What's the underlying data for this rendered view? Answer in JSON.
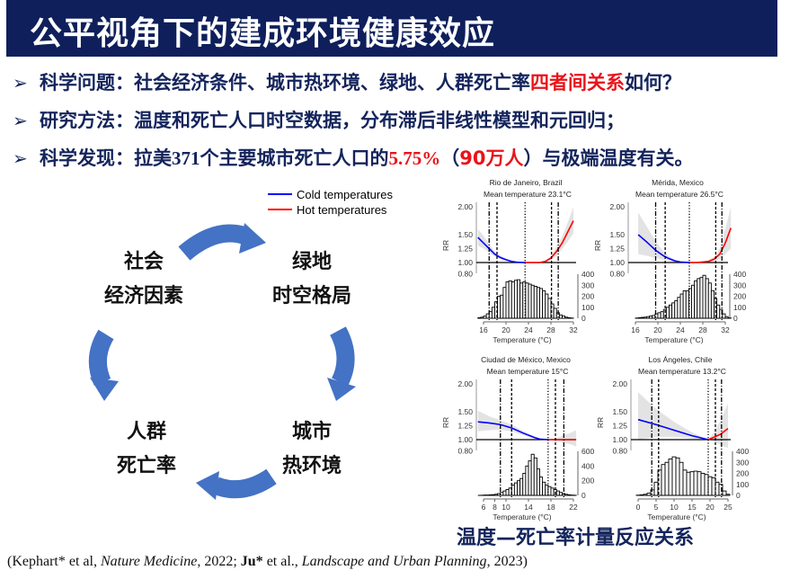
{
  "header": {
    "title": "公平视角下的建成环境健康效应",
    "bg_color": "#0e1f5b"
  },
  "bullets": [
    {
      "marker": "➢",
      "label": "科学问题：",
      "text": "社会经济条件、城市热环境、绿地、人群死亡率",
      "highlight": "四者间关系",
      "tail": "如何？"
    },
    {
      "marker": "➢",
      "label": "研究方法：",
      "text": "温度和死亡人口时空数据，分布滞后非线性模型和元回归；"
    },
    {
      "marker": "➢",
      "label": "科学发现：",
      "pre": "拉美",
      "num": "371",
      "mid": "个主要城市死亡人口的",
      "pct": "5.75%",
      "paren_open": "（",
      "count": "90万人",
      "paren_close": "）",
      "tail": "与极端温度有关。"
    }
  ],
  "diagram": {
    "arrow_color": "#4472c4",
    "nodes": [
      {
        "line1": "社会",
        "line2": "经济因素"
      },
      {
        "line1": "绿地",
        "line2": "时空格局"
      },
      {
        "line1": "城市",
        "line2": "热环境"
      },
      {
        "line1": "人群",
        "line2": "死亡率"
      }
    ]
  },
  "legend": {
    "items": [
      {
        "label": "Cold temperatures",
        "color": "#0000ff"
      },
      {
        "label": "Hot temperatures",
        "color": "#ff0000"
      }
    ]
  },
  "chart_data": [
    {
      "type": "line+histogram",
      "title": "Rio de Janeiro, Brazil",
      "subtitle": "Mean temperature 23.1°C",
      "xlabel": "Temperature (°C)",
      "ylabel": "RR",
      "xticks": [
        16,
        20,
        24,
        28,
        32
      ],
      "rr_ticks": [
        "2.00",
        "1.50",
        "1.25",
        "1.00",
        "0.80"
      ],
      "hist_ticks": [
        0,
        100,
        200,
        300,
        400
      ],
      "hist_max": 400,
      "mmt": 23.4,
      "vlines": [
        {
          "t": 17,
          "style": "dotdash"
        },
        {
          "t": 18.4,
          "style": "dashed"
        },
        {
          "t": 23.4,
          "style": "dotted"
        },
        {
          "t": 28.1,
          "style": "dashed"
        },
        {
          "t": 29.3,
          "style": "dotdash"
        }
      ],
      "curve": [
        [
          15,
          1.45,
          1.3,
          1.6
        ],
        [
          16,
          1.35,
          1.25,
          1.48
        ],
        [
          17,
          1.25,
          1.18,
          1.33
        ],
        [
          18,
          1.15,
          1.11,
          1.2
        ],
        [
          19,
          1.09,
          1.06,
          1.12
        ],
        [
          20,
          1.05,
          1.03,
          1.07
        ],
        [
          21,
          1.02,
          1.01,
          1.03
        ],
        [
          22,
          1.005,
          1.0,
          1.01
        ],
        [
          23.4,
          1,
          1,
          1
        ],
        [
          25,
          1,
          1,
          1.01
        ],
        [
          26,
          1,
          0.99,
          1.01
        ],
        [
          27,
          1.02,
          1.0,
          1.04
        ],
        [
          28,
          1.08,
          1.04,
          1.12
        ],
        [
          29,
          1.2,
          1.12,
          1.28
        ],
        [
          30,
          1.35,
          1.24,
          1.47
        ],
        [
          31,
          1.55,
          1.38,
          1.72
        ],
        [
          32,
          1.75,
          1.52,
          2.0
        ]
      ],
      "hist_start": 15,
      "hist_bin": 0.5,
      "hist": [
        5,
        10,
        20,
        40,
        60,
        100,
        150,
        200,
        210,
        280,
        330,
        340,
        330,
        345,
        350,
        320,
        330,
        320,
        310,
        300,
        290,
        280,
        270,
        250,
        220,
        180,
        130,
        90,
        50,
        30,
        20,
        10,
        5,
        2
      ]
    },
    {
      "type": "line+histogram",
      "title": "Mérida, Mexico",
      "subtitle": "Mean temperature 26.5°C",
      "xlabel": "Temperature (°C)",
      "ylabel": "RR",
      "xticks": [
        16,
        20,
        24,
        28,
        32
      ],
      "rr_ticks": [
        "2.00",
        "1.50",
        "1.25",
        "1.00",
        "0.80"
      ],
      "hist_ticks": [
        0,
        100,
        200,
        300,
        400
      ],
      "hist_max": 400,
      "mmt": 25.6,
      "vlines": [
        {
          "t": 19.6,
          "style": "dotdash"
        },
        {
          "t": 21.3,
          "style": "dashed"
        },
        {
          "t": 25.6,
          "style": "dotted"
        },
        {
          "t": 30.3,
          "style": "dashed"
        },
        {
          "t": 31.4,
          "style": "dotdash"
        }
      ],
      "curve": [
        [
          16.5,
          1.5,
          1.15,
          1.9
        ],
        [
          18,
          1.37,
          1.12,
          1.65
        ],
        [
          19.6,
          1.22,
          1.08,
          1.38
        ],
        [
          21,
          1.12,
          1.05,
          1.2
        ],
        [
          22,
          1.07,
          1.03,
          1.11
        ],
        [
          23,
          1.03,
          1.01,
          1.05
        ],
        [
          24,
          1.01,
          1.0,
          1.02
        ],
        [
          25.6,
          1,
          1,
          1
        ],
        [
          27,
          1,
          0.99,
          1.01
        ],
        [
          28,
          1.01,
          1.0,
          1.02
        ],
        [
          29,
          1.02,
          1.0,
          1.04
        ],
        [
          30,
          1.06,
          1.02,
          1.1
        ],
        [
          31,
          1.15,
          1.06,
          1.25
        ],
        [
          32,
          1.35,
          1.15,
          1.6
        ],
        [
          33,
          1.62,
          1.25,
          2.0
        ]
      ],
      "hist_start": 16,
      "hist_bin": 0.5,
      "hist": [
        2,
        5,
        8,
        10,
        15,
        20,
        25,
        40,
        50,
        60,
        80,
        100,
        120,
        140,
        160,
        190,
        220,
        250,
        250,
        270,
        300,
        340,
        360,
        370,
        390,
        360,
        320,
        250,
        180,
        120,
        80,
        40,
        15,
        5
      ]
    },
    {
      "type": "line+histogram",
      "title": "Ciudad de México, Mexico",
      "subtitle": "Mean temperature 15°C",
      "xlabel": "Temperature (°C)",
      "ylabel": "RR",
      "xticks": [
        6,
        8,
        10,
        14,
        18,
        22
      ],
      "rr_ticks": [
        "2.00",
        "1.50",
        "1.25",
        "1.00",
        "0.80"
      ],
      "hist_ticks": [
        0,
        200,
        400,
        600
      ],
      "hist_max": 600,
      "mmt": 17.5,
      "vlines": [
        {
          "t": 9,
          "style": "dotdash"
        },
        {
          "t": 11,
          "style": "dashed"
        },
        {
          "t": 17.5,
          "style": "dotted"
        },
        {
          "t": 18.8,
          "style": "dashed"
        },
        {
          "t": 20.3,
          "style": "dotdash"
        }
      ],
      "curve": [
        [
          5,
          1.32,
          1.15,
          1.52
        ],
        [
          7,
          1.3,
          1.17,
          1.42
        ],
        [
          9,
          1.27,
          1.18,
          1.35
        ],
        [
          11,
          1.21,
          1.15,
          1.27
        ],
        [
          13,
          1.12,
          1.08,
          1.16
        ],
        [
          15,
          1.04,
          1.02,
          1.06
        ],
        [
          16,
          1.01,
          1.0,
          1.02
        ],
        [
          17.5,
          1,
          1,
          1
        ],
        [
          19,
          1,
          0.98,
          1.03
        ],
        [
          21,
          1,
          0.93,
          1.1
        ],
        [
          22.5,
          1,
          0.88,
          1.17
        ]
      ],
      "hist_start": 5,
      "hist_bin": 0.5,
      "hist": [
        0,
        2,
        5,
        5,
        8,
        10,
        15,
        25,
        40,
        60,
        80,
        100,
        140,
        170,
        200,
        230,
        300,
        400,
        470,
        560,
        510,
        360,
        250,
        180,
        140,
        120,
        100,
        80,
        60,
        40,
        25,
        15,
        8,
        4,
        2
      ]
    },
    {
      "type": "line+histogram",
      "title": "Los Ángeles, Chile",
      "subtitle": "Mean temperature 13.2°C",
      "xlabel": "Temperature (°C)",
      "ylabel": "RR",
      "xticks": [
        0,
        5,
        10,
        15,
        20,
        25
      ],
      "rr_ticks": [
        "2.00",
        "1.50",
        "1.25",
        "1.00",
        "0.80"
      ],
      "hist_ticks": [
        0,
        100,
        200,
        300,
        400
      ],
      "hist_max": 400,
      "mmt": 19.5,
      "vlines": [
        {
          "t": 3.8,
          "style": "dotdash"
        },
        {
          "t": 5.7,
          "style": "dashed"
        },
        {
          "t": 19.5,
          "style": "dotted"
        },
        {
          "t": 21.5,
          "style": "dashed"
        },
        {
          "t": 23.2,
          "style": "dotdash"
        }
      ],
      "curve": [
        [
          0,
          1.36,
          1.0,
          1.85
        ],
        [
          5,
          1.27,
          1.05,
          1.55
        ],
        [
          10,
          1.17,
          1.05,
          1.32
        ],
        [
          15,
          1.07,
          1.02,
          1.13
        ],
        [
          19.5,
          1,
          1,
          1
        ],
        [
          21,
          1.04,
          0.97,
          1.12
        ],
        [
          23,
          1.1,
          0.9,
          1.35
        ],
        [
          25,
          1.2,
          0.85,
          1.65
        ]
      ],
      "hist_start": -0.5,
      "hist_bin": 1,
      "hist": [
        2,
        5,
        10,
        20,
        50,
        120,
        230,
        280,
        300,
        330,
        350,
        340,
        300,
        230,
        210,
        215,
        220,
        215,
        200,
        190,
        170,
        160,
        120,
        100,
        40,
        10
      ]
    }
  ],
  "caption": "温度—死亡率计量反应关系",
  "reference": {
    "open": "(Kephart*  et al, ",
    "journal1": "Nature Medicine",
    "mid1": ", 2022;  ",
    "author2": "Ju*",
    "mid2": " et al., ",
    "journal2": "Landscape and Urban Planning",
    "close": ", 2023)"
  }
}
